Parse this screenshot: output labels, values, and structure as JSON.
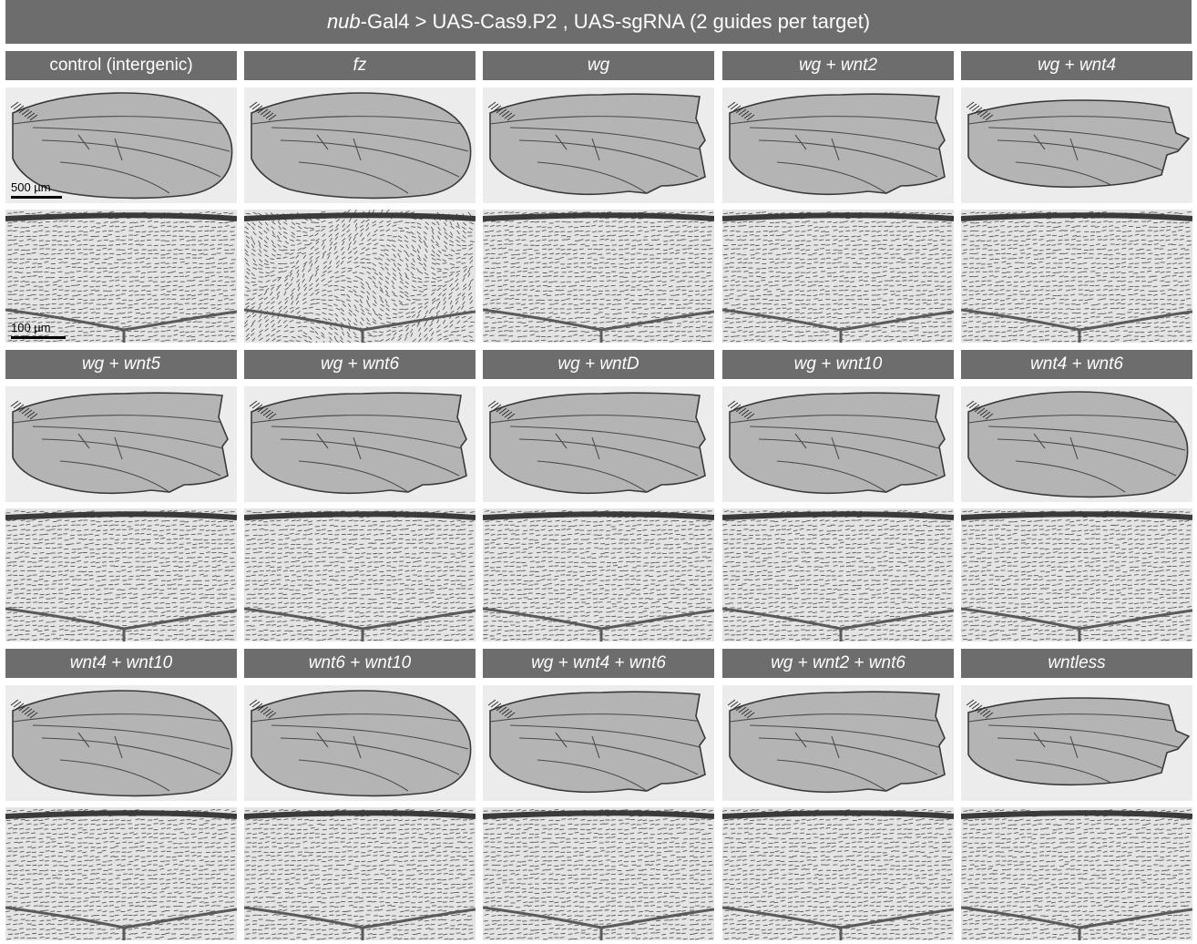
{
  "figure": {
    "title_italic": "nub",
    "title_rest": "-Gal4 > UAS-Cas9.P2 , UAS-sgRNA (2 guides per target)"
  },
  "conditions": [
    {
      "label": "control (intergenic)",
      "italic": false,
      "shape": "normal"
    },
    {
      "label": "fz",
      "italic": true,
      "shape": "normal"
    },
    {
      "label": "wg",
      "italic": true,
      "shape": "notched"
    },
    {
      "label": "wg + wnt2",
      "italic": true,
      "shape": "notched"
    },
    {
      "label": "wg + wnt4",
      "italic": true,
      "shape": "severe"
    },
    {
      "label": "wg + wnt5",
      "italic": true,
      "shape": "notched"
    },
    {
      "label": "wg + wnt6",
      "italic": true,
      "shape": "notched"
    },
    {
      "label": "wg + wntD",
      "italic": true,
      "shape": "notched"
    },
    {
      "label": "wg + wnt10",
      "italic": true,
      "shape": "notched"
    },
    {
      "label": "wnt4 + wnt6",
      "italic": true,
      "shape": "normal"
    },
    {
      "label": "wnt4 + wnt10",
      "italic": true,
      "shape": "normal"
    },
    {
      "label": "wnt6 + wnt10",
      "italic": true,
      "shape": "normal"
    },
    {
      "label": "wg + wnt4 + wnt6",
      "italic": true,
      "shape": "notched"
    },
    {
      "label": "wg + wnt2 + wnt6",
      "italic": true,
      "shape": "notched"
    },
    {
      "label": "wntless",
      "italic": true,
      "shape": "severe"
    }
  ],
  "scale_bars": {
    "wing": "500 µm",
    "zoom": "100 µm"
  },
  "colors": {
    "header_bg": "#6d6d6d",
    "header_text": "#ffffff",
    "wing_fill": "#b4b4b4",
    "vein": "#4a4a4a",
    "hair": "#5a5a5a"
  }
}
